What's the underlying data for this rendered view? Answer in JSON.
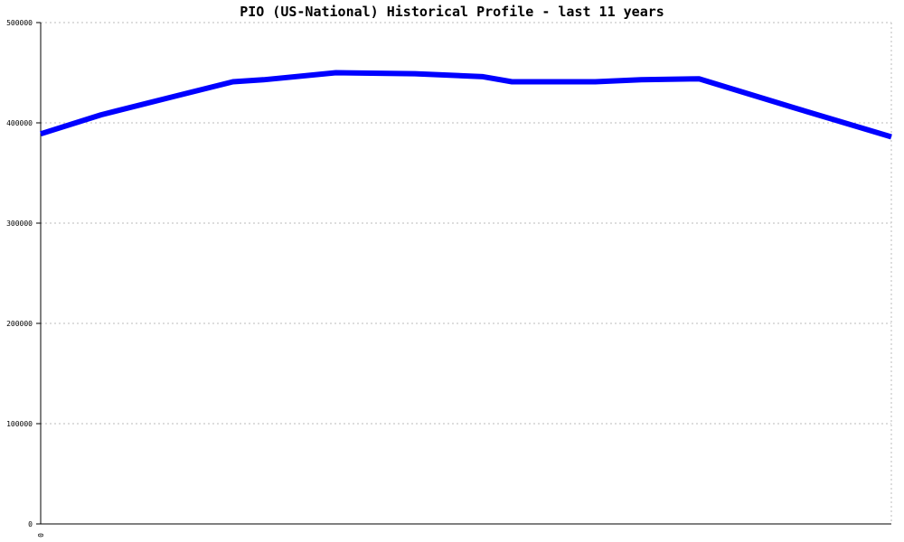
{
  "chart_data": {
    "type": "line",
    "title": "PIO (US-National) Historical Profile - last 11 years",
    "xlabel": "",
    "ylabel": "",
    "ylim": [
      0,
      500000
    ],
    "yticks": [
      "0",
      "100000",
      "200000",
      "300000",
      "400000",
      "500000"
    ],
    "xticks": [
      "0"
    ],
    "grid": true,
    "legend": "none",
    "series": [
      {
        "color": "#0000ff",
        "values": [
          389000,
          408000,
          427000,
          441000,
          443000,
          450000,
          449000,
          446000,
          441000,
          441000,
          443000,
          444000,
          415000,
          386000
        ],
        "x": [
          0,
          0.071,
          0.16,
          0.226,
          0.262,
          0.347,
          0.44,
          0.52,
          0.554,
          0.652,
          0.706,
          0.774,
          0.886,
          1.0
        ]
      }
    ]
  }
}
